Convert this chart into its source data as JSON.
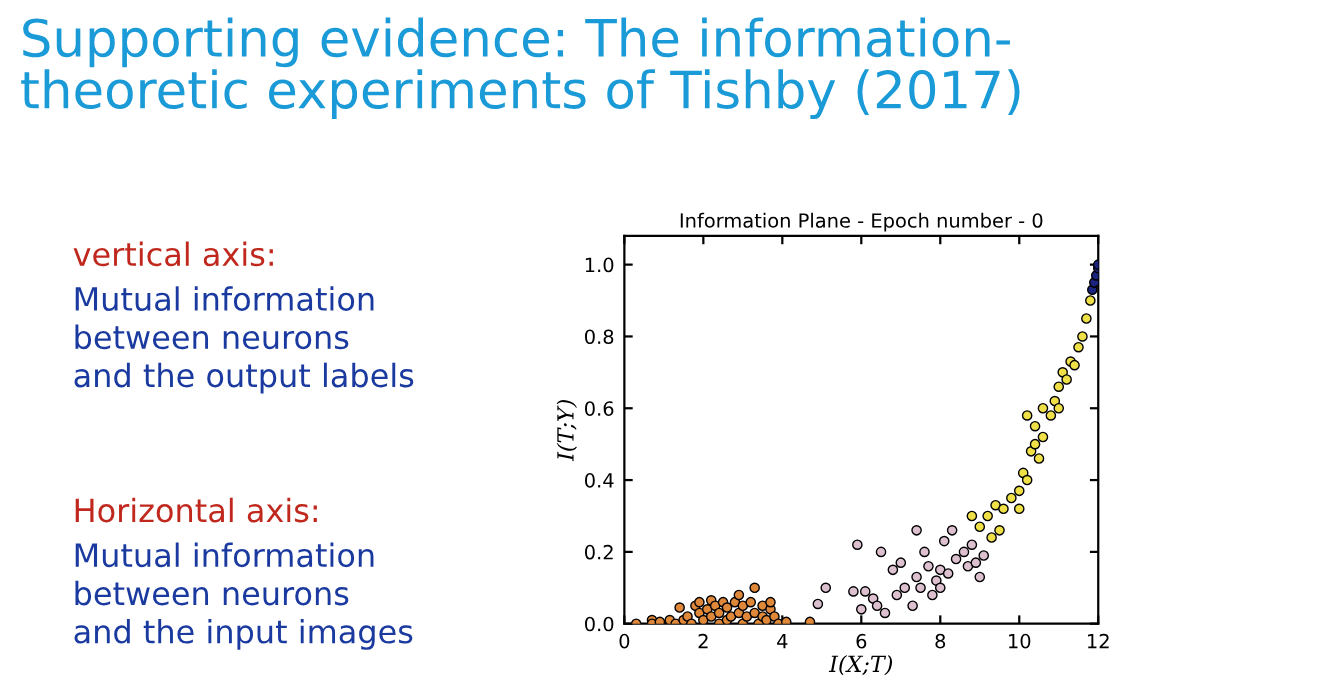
{
  "chart_data": {
    "type": "scatter",
    "title": "Supporting evidence: The information-\ntheoretic experiments of Tishby (2017)",
    "subtitle": "Information Plane - Epoch number - 0",
    "xlabel": "I(X;T)",
    "ylabel": "I(T;Y)",
    "annotations": [
      "vertical axis:",
      "Mutual information\nbetween neurons\nand the output labels",
      "Horizontal axis:",
      "Mutual information\nbetween neurons\nand the input images"
    ],
    "marker": "circle",
    "xlim": [
      0,
      12
    ],
    "xticks": [
      0,
      2,
      4,
      6,
      8,
      10,
      12
    ],
    "ylim": [
      0,
      1.08
    ],
    "yticks": [
      {
        "value": 0,
        "label": "0.0"
      },
      0.2,
      0.4,
      0.6,
      0.8,
      {
        "value": 1,
        "label": "1.0"
      }
    ],
    "series": [
      {
        "color": "#e0883a",
        "x": [
          0.3,
          0.7,
          0.7,
          0.9,
          1.15,
          1.3,
          1.4,
          1.5,
          1.6,
          1.7,
          1.8,
          1.9,
          1.9,
          2.0,
          2.1,
          2.2,
          2.2,
          2.3,
          2.4,
          2.4,
          2.5,
          2.6,
          2.6,
          2.7,
          2.8,
          2.9,
          2.9,
          3.0,
          3.0,
          3.1,
          3.2,
          3.3,
          3.3,
          3.4,
          3.5,
          3.5,
          3.6,
          3.7,
          3.7,
          3.8,
          3.9,
          4.1,
          4.7
        ],
        "values": [
          0,
          0.01,
          0,
          0.005,
          0.01,
          0,
          0.045,
          0.01,
          0.02,
          0,
          0.05,
          0.03,
          0.06,
          0.01,
          0.04,
          0.065,
          0.02,
          0.05,
          0,
          0.03,
          0.06,
          0.01,
          0.045,
          0.02,
          0.06,
          0.08,
          0.03,
          0,
          0.05,
          0.02,
          0.06,
          0.1,
          0.03,
          0,
          0.05,
          0.02,
          0.01,
          0.04,
          0.06,
          0.02,
          0,
          0.005,
          0.005
        ]
      },
      {
        "color": "#dcc0d0",
        "x": [
          4.9,
          5.1,
          5.8,
          5.9,
          6.0,
          6.1,
          6.3,
          6.4,
          6.5,
          6.6,
          6.8,
          6.9,
          7.0,
          7.1,
          7.3,
          7.4,
          7.4,
          7.5,
          7.6,
          7.7,
          7.8,
          7.9,
          8.0,
          8.0,
          8.1,
          8.2,
          8.3,
          8.4,
          8.6,
          8.7,
          8.8,
          8.9,
          9.0,
          9.1
        ],
        "values": [
          0.055,
          0.1,
          0.09,
          0.22,
          0.04,
          0.09,
          0.07,
          0.05,
          0.2,
          0.03,
          0.15,
          0.08,
          0.17,
          0.1,
          0.05,
          0.26,
          0.13,
          0.1,
          0.2,
          0.16,
          0.08,
          0.12,
          0.15,
          0.1,
          0.23,
          0.14,
          0.26,
          0.18,
          0.2,
          0.16,
          0.22,
          0.17,
          0.13,
          0.19
        ]
      },
      {
        "color": "#f0e048",
        "x": [
          8.8,
          9.0,
          9.2,
          9.3,
          9.4,
          9.5,
          9.6,
          9.8,
          10.0,
          10.0,
          10.1,
          10.2,
          10.2,
          10.3,
          10.4,
          10.4,
          10.5,
          10.6,
          10.6,
          10.8,
          10.9,
          11.0,
          11.0,
          11.1,
          11.2,
          11.3,
          11.4,
          11.5,
          11.6,
          11.7,
          11.8
        ],
        "values": [
          0.3,
          0.27,
          0.3,
          0.24,
          0.33,
          0.26,
          0.32,
          0.35,
          0.32,
          0.37,
          0.42,
          0.4,
          0.58,
          0.48,
          0.5,
          0.55,
          0.46,
          0.6,
          0.52,
          0.58,
          0.62,
          0.66,
          0.6,
          0.7,
          0.68,
          0.73,
          0.72,
          0.77,
          0.8,
          0.85,
          0.9
        ]
      },
      {
        "color": "#1a237e",
        "x": [
          11.85,
          11.9,
          11.95,
          12.0,
          12.0
        ],
        "values": [
          0.93,
          0.95,
          0.97,
          0.99,
          1.0
        ]
      }
    ]
  }
}
